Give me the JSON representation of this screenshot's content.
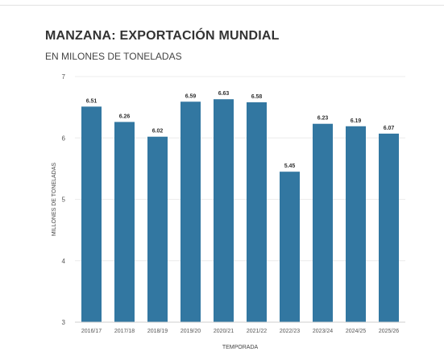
{
  "chart_data": {
    "type": "bar",
    "title": "MANZANA: EXPORTACIÓN MUNDIAL",
    "subtitle": "EN MILONES DE TONELADAS",
    "xlabel": "TEMPORADA",
    "ylabel": "MILLONES DE TONELADAS",
    "ylim": [
      3,
      7
    ],
    "yticks": [
      3,
      4,
      5,
      6,
      7
    ],
    "grid": true,
    "bar_color": "#3277a1",
    "categories": [
      "2016/17",
      "2017/18",
      "2018/19",
      "2019/20",
      "2020/21",
      "2021/22",
      "2022/23",
      "2023/24",
      "2024/25",
      "2025/26"
    ],
    "values": [
      6.51,
      6.26,
      6.02,
      6.59,
      6.63,
      6.58,
      5.45,
      6.23,
      6.19,
      6.07
    ],
    "value_labels": [
      "6.51",
      "6.26",
      "6.02",
      "6.59",
      "6.63",
      "6.58",
      "5.45",
      "6.23",
      "6.19",
      "6.07"
    ]
  }
}
